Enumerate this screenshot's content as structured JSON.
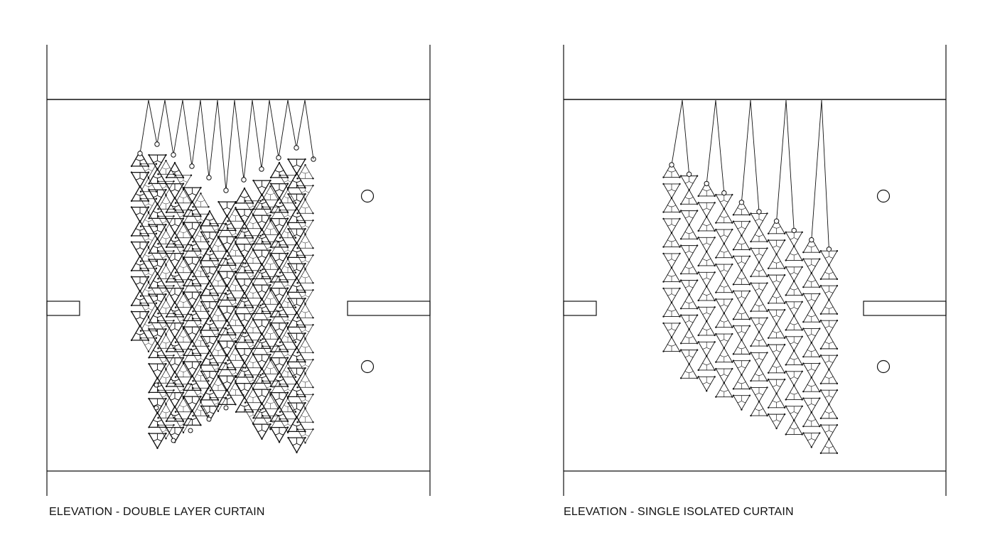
{
  "drawings": [
    {
      "caption": "ELEVATION - DOUBLE LAYER CURTAIN",
      "layers": 2
    },
    {
      "caption": "ELEVATION - SINGLE ISOLATED CURTAIN",
      "layers": 1
    }
  ],
  "colors": {
    "line": "#111111",
    "background": "#ffffff"
  }
}
